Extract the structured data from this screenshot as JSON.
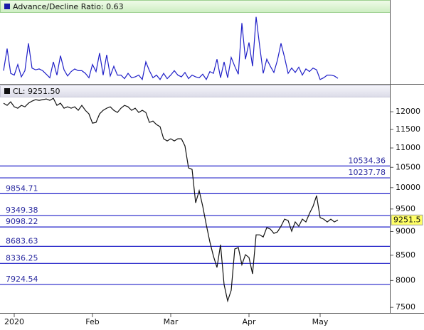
{
  "chart_data": [
    {
      "type": "line",
      "title": "Advance/Decline Ratio: 0.63",
      "color": "#2020c8",
      "ylim": [
        0,
        7.9
      ],
      "values": [
        1.5,
        4.0,
        1.2,
        1.0,
        2.2,
        0.8,
        1.5,
        4.6,
        1.8,
        1.6,
        1.7,
        1.5,
        1.1,
        0.7,
        2.5,
        1.0,
        3.2,
        1.6,
        0.9,
        1.4,
        1.7,
        1.5,
        1.5,
        1.2,
        0.7,
        2.2,
        1.4,
        3.5,
        1.0,
        3.3,
        0.9,
        2.0,
        1.0,
        1.0,
        0.6,
        1.2,
        0.7,
        0.8,
        1.0,
        0.5,
        2.5,
        1.5,
        0.7,
        1.0,
        0.5,
        1.2,
        0.6,
        1.0,
        1.5,
        1.0,
        0.8,
        1.3,
        0.6,
        1.0,
        0.8,
        0.7,
        1.1,
        0.5,
        1.4,
        1.2,
        2.8,
        0.7,
        2.5,
        0.7,
        3.0,
        2.0,
        1.1,
        6.9,
        2.8,
        4.7,
        2.0,
        7.6,
        4.3,
        1.2,
        2.8,
        2.0,
        1.3,
        2.7,
        4.6,
        3.0,
        1.2,
        1.8,
        1.3,
        1.9,
        1.0,
        1.7,
        1.4,
        1.8,
        1.6,
        0.5,
        0.7,
        1.0,
        1.0,
        0.9,
        0.63
      ]
    },
    {
      "type": "line",
      "title": "CL: 9251.50",
      "color": "#111111",
      "log_scale": true,
      "ylim": [
        7400,
        12420
      ],
      "yticks": [
        7500,
        8000,
        8500,
        9000,
        9500,
        10000,
        10500,
        11000,
        11500,
        12000
      ],
      "categories": [
        null,
        null,
        null,
        "2020",
        null,
        null,
        null,
        null,
        null,
        null,
        null,
        null,
        null,
        null,
        null,
        null,
        null,
        null,
        null,
        null,
        null,
        null,
        null,
        null,
        null,
        "Feb",
        null,
        null,
        null,
        null,
        null,
        null,
        null,
        null,
        null,
        null,
        null,
        null,
        null,
        null,
        null,
        null,
        null,
        null,
        null,
        null,
        null,
        "Mar",
        null,
        null,
        null,
        null,
        null,
        null,
        null,
        null,
        null,
        null,
        null,
        null,
        null,
        null,
        null,
        null,
        null,
        null,
        null,
        null,
        null,
        "Apr",
        null,
        null,
        null,
        null,
        null,
        null,
        null,
        null,
        null,
        null,
        null,
        null,
        null,
        null,
        null,
        null,
        null,
        null,
        null,
        "May",
        null,
        null,
        null,
        null,
        null
      ],
      "values": [
        12249,
        12186,
        12290,
        12144,
        12103,
        12186,
        12144,
        12249,
        12311,
        12354,
        12333,
        12354,
        12375,
        12333,
        12395,
        12186,
        12249,
        12103,
        12144,
        12103,
        12144,
        12041,
        12186,
        12041,
        11939,
        11676,
        11696,
        11939,
        12041,
        12103,
        12144,
        12041,
        11980,
        12103,
        12186,
        12144,
        12041,
        12103,
        11980,
        12041,
        11980,
        11696,
        11736,
        11636,
        11577,
        11245,
        11188,
        11245,
        11188,
        11245,
        11245,
        11054,
        10485,
        10448,
        9642,
        9927,
        9560,
        9145,
        8778,
        8483,
        8254,
        8718,
        7921,
        7617,
        7814,
        8629,
        8659,
        8310,
        8512,
        8454,
        8128,
        8928,
        8928,
        8882,
        9083,
        9052,
        8959,
        8990,
        9114,
        9271,
        9240,
        9005,
        9208,
        9114,
        9271,
        9208,
        9398,
        9560,
        9809,
        9303,
        9271,
        9208,
        9271,
        9208,
        9251.5
      ],
      "levels_color": "#2020c8",
      "levels": [
        {
          "value": 10534.36,
          "label": "10534.36"
        },
        {
          "value": 10237.78,
          "label": "10237.78"
        },
        {
          "value": 9854.71,
          "label": "9854.71"
        },
        {
          "value": 9349.38,
          "label": "9349.38"
        },
        {
          "value": 9098.22,
          "label": "9098.22"
        },
        {
          "value": 8683.63,
          "label": "8683.63"
        },
        {
          "value": 8336.25,
          "label": "8336.25"
        },
        {
          "value": 7924.54,
          "label": "7924.54"
        }
      ],
      "price_marker": {
        "value": 9251.5,
        "label": "9251.5"
      }
    }
  ]
}
